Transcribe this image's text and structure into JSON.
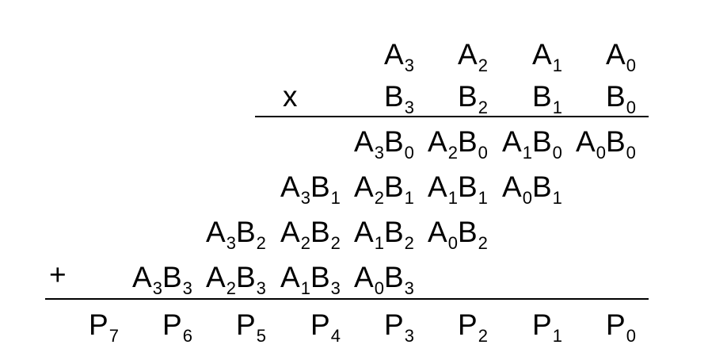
{
  "multiplicand": [
    "A3",
    "A2",
    "A1",
    "A0"
  ],
  "multiplier": [
    "B3",
    "B2",
    "B1",
    "B0"
  ],
  "times_sign": "x",
  "plus_sign": "+",
  "partial_products": [
    [
      "A3B0",
      "A2B0",
      "A1B0",
      "A0B0"
    ],
    [
      "A3B1",
      "A2B1",
      "A1B1",
      "A0B1"
    ],
    [
      "A3B2",
      "A2B2",
      "A1B2",
      "A0B2"
    ],
    [
      "A3B3",
      "A2B3",
      "A1B3",
      "A0B3"
    ]
  ],
  "product": [
    "P7",
    "P6",
    "P5",
    "P4",
    "P3",
    "P2",
    "P1",
    "P0"
  ]
}
